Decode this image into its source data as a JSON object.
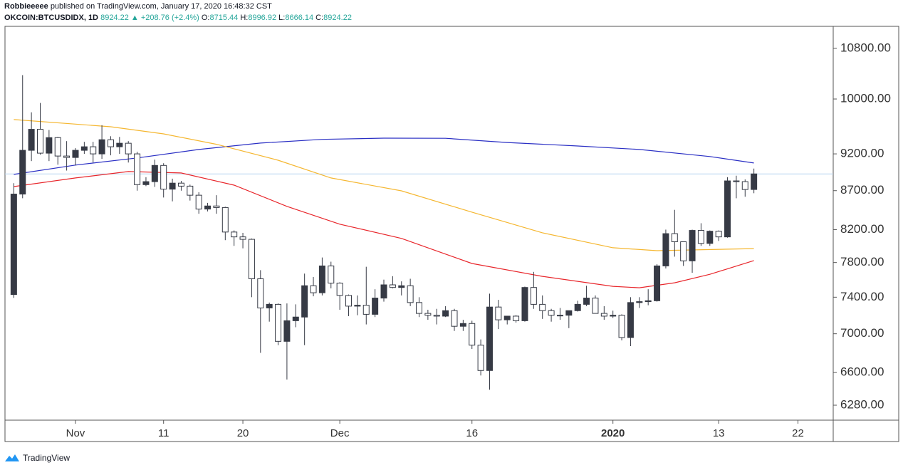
{
  "header": {
    "author": "Robbieeeee",
    "published": "published on TradingView.com, January 17, 2020 16:48:32 CST",
    "symbol": "OKCOIN:BTCUSDIDX, 1D",
    "change": "+208.76 (+2.4%)",
    "open_label": "O:",
    "high_label": "H:",
    "low_label": "L:",
    "close_label": "C:"
  },
  "footer": {
    "brand": "TradingView"
  },
  "chart_data": {
    "type": "candlestick",
    "log_scale": true,
    "up_color": "#363a45",
    "down_color": "#ffffff",
    "border_color": "#363a45",
    "last_price_line_color": "#b7d5f0",
    "candles": {
      "x": [
        "2019-10-25",
        "2019-10-26",
        "2019-10-27",
        "2019-10-28",
        "2019-10-29",
        "2019-10-30",
        "2019-10-31",
        "2019-11-01",
        "2019-11-02",
        "2019-11-03",
        "2019-11-04",
        "2019-11-05",
        "2019-11-06",
        "2019-11-07",
        "2019-11-08",
        "2019-11-09",
        "2019-11-10",
        "2019-11-11",
        "2019-11-12",
        "2019-11-13",
        "2019-11-14",
        "2019-11-15",
        "2019-11-16",
        "2019-11-17",
        "2019-11-18",
        "2019-11-19",
        "2019-11-20",
        "2019-11-21",
        "2019-11-22",
        "2019-11-23",
        "2019-11-24",
        "2019-11-25",
        "2019-11-26",
        "2019-11-27",
        "2019-11-28",
        "2019-11-29",
        "2019-11-30",
        "2019-12-01",
        "2019-12-02",
        "2019-12-03",
        "2019-12-04",
        "2019-12-05",
        "2019-12-06",
        "2019-12-07",
        "2019-12-08",
        "2019-12-09",
        "2019-12-10",
        "2019-12-11",
        "2019-12-12",
        "2019-12-13",
        "2019-12-14",
        "2019-12-15",
        "2019-12-16",
        "2019-12-17",
        "2019-12-18",
        "2019-12-19",
        "2019-12-20",
        "2019-12-21",
        "2019-12-22",
        "2019-12-23",
        "2019-12-24",
        "2019-12-25",
        "2019-12-26",
        "2019-12-27",
        "2019-12-28",
        "2019-12-29",
        "2019-12-30",
        "2019-12-31",
        "2020-01-01",
        "2020-01-02",
        "2020-01-03",
        "2020-01-04",
        "2020-01-05",
        "2020-01-06",
        "2020-01-07",
        "2020-01-08",
        "2020-01-09",
        "2020-01-10",
        "2020-01-11",
        "2020-01-12",
        "2020-01-13",
        "2020-01-14",
        "2020-01-15",
        "2020-01-16",
        "2020-01-17"
      ],
      "open": [
        7430,
        8655,
        9250,
        9550,
        9210,
        9430,
        9170,
        9150,
        9250,
        9300,
        9200,
        9400,
        9300,
        9350,
        9200,
        8780,
        8820,
        9040,
        8720,
        8800,
        8760,
        8640,
        8460,
        8500,
        8480,
        8170,
        8110,
        8080,
        7610,
        7280,
        7320,
        6920,
        7140,
        7180,
        7530,
        7450,
        7760,
        7560,
        7420,
        7300,
        7310,
        7210,
        7390,
        7540,
        7510,
        7530,
        7340,
        7220,
        7200,
        7190,
        7250,
        7080,
        7110,
        6880,
        6620,
        7290,
        7150,
        7190,
        7140,
        7510,
        7320,
        7250,
        7200,
        7200,
        7250,
        7320,
        7390,
        7220,
        7190,
        7200,
        6960,
        7340,
        7350,
        7360,
        7760,
        8150,
        8050,
        7820,
        8190,
        8030,
        8180,
        8110,
        8830,
        8820,
        8715.44
      ],
      "high": [
        8799,
        10370,
        9800,
        9940,
        9540,
        9440,
        9380,
        9280,
        9370,
        9370,
        9610,
        9450,
        9440,
        9380,
        9230,
        8880,
        9120,
        9070,
        8860,
        8830,
        8780,
        8680,
        8540,
        8640,
        8490,
        8190,
        8160,
        8090,
        7710,
        7340,
        7330,
        7330,
        7320,
        7670,
        7630,
        7860,
        7810,
        7570,
        7430,
        7420,
        7750,
        7490,
        7600,
        7640,
        7580,
        7610,
        7400,
        7260,
        7270,
        7300,
        7270,
        7150,
        7140,
        6940,
        7440,
        7370,
        7190,
        7200,
        7520,
        7690,
        7420,
        7270,
        7280,
        7250,
        7360,
        7530,
        7420,
        7300,
        7250,
        7210,
        7400,
        7400,
        7490,
        7780,
        8200,
        8450,
        8050,
        8200,
        8280,
        8190,
        8190,
        8880,
        8900,
        8850,
        8996.92
      ],
      "low": [
        7393,
        8600,
        9100,
        9190,
        9100,
        9050,
        8970,
        9040,
        9200,
        9080,
        9130,
        9180,
        9200,
        9080,
        8700,
        8760,
        8750,
        8610,
        8560,
        8700,
        8570,
        8400,
        8430,
        8400,
        8070,
        8000,
        7970,
        7400,
        6800,
        7130,
        6880,
        6530,
        7070,
        6880,
        7410,
        7420,
        7500,
        7260,
        7190,
        7200,
        7100,
        7180,
        7350,
        7500,
        7420,
        7300,
        7180,
        7150,
        7100,
        7180,
        7030,
        7030,
        6840,
        6570,
        6430,
        7050,
        7100,
        7120,
        7130,
        7270,
        7160,
        7130,
        7150,
        7060,
        7240,
        7300,
        7220,
        7150,
        7170,
        6930,
        6870,
        7280,
        7310,
        7350,
        7730,
        7870,
        7760,
        7680,
        8000,
        8000,
        8060,
        8100,
        8600,
        8620,
        8666.14
      ],
      "close": [
        8655,
        9250,
        9550,
        9210,
        9430,
        9170,
        9150,
        9250,
        9300,
        9200,
        9400,
        9300,
        9350,
        9200,
        8780,
        8820,
        9040,
        8720,
        8800,
        8760,
        8640,
        8460,
        8500,
        8480,
        8170,
        8110,
        8080,
        7610,
        7280,
        7320,
        6920,
        7140,
        7180,
        7530,
        7450,
        7760,
        7560,
        7420,
        7300,
        7310,
        7210,
        7390,
        7540,
        7510,
        7530,
        7340,
        7220,
        7200,
        7190,
        7250,
        7080,
        7110,
        6880,
        6620,
        7290,
        7150,
        7190,
        7140,
        7510,
        7320,
        7250,
        7200,
        7200,
        7250,
        7320,
        7390,
        7220,
        7190,
        7200,
        6960,
        7340,
        7350,
        7360,
        7760,
        8150,
        8050,
        7820,
        8190,
        8030,
        8180,
        8110,
        8830,
        8820,
        8715.44,
        8924.22
      ]
    },
    "moving_averages": [
      {
        "color": "#2a2fc4",
        "x": [
          "2019-10-25",
          "2019-11-01",
          "2019-11-08",
          "2019-11-15",
          "2019-11-22",
          "2019-11-29",
          "2019-12-06",
          "2019-12-13",
          "2019-12-20",
          "2019-12-28",
          "2020-01-04",
          "2020-01-12",
          "2020-01-17"
        ],
        "values": [
          8918,
          9045,
          9143,
          9262,
          9352,
          9405,
          9423,
          9420,
          9361,
          9311,
          9262,
          9163,
          9073
        ]
      },
      {
        "color": "#f5b731",
        "x": [
          "2019-10-25",
          "2019-11-05",
          "2019-11-11",
          "2019-11-17",
          "2019-11-24",
          "2019-11-30",
          "2019-12-08",
          "2019-12-16",
          "2019-12-24",
          "2020-01-01",
          "2020-01-06",
          "2020-01-17"
        ],
        "values": [
          9692,
          9587,
          9484,
          9335,
          9112,
          8870,
          8698,
          8421,
          8161,
          7977,
          7942,
          7967
        ]
      },
      {
        "color": "#e8262b",
        "x": [
          "2019-10-25",
          "2019-11-01",
          "2019-11-07",
          "2019-11-13",
          "2019-11-19",
          "2019-11-25",
          "2019-12-01",
          "2019-12-08",
          "2019-12-16",
          "2019-12-24",
          "2020-01-01",
          "2020-01-04",
          "2020-01-08",
          "2020-01-12",
          "2020-01-17"
        ],
        "values": [
          8754,
          8870,
          8956,
          8937,
          8773,
          8495,
          8268,
          8091,
          7789,
          7638,
          7523,
          7507,
          7564,
          7662,
          7823
        ]
      }
    ],
    "xlim": [
      "2019-10-24",
      "2020-01-26"
    ],
    "xticks": [
      {
        "value": "2019-11-01",
        "label": "Nov"
      },
      {
        "value": "2019-11-11",
        "label": "11"
      },
      {
        "value": "2019-11-20",
        "label": "20"
      },
      {
        "value": "2019-12-01",
        "label": "Dec"
      },
      {
        "value": "2019-12-16",
        "label": "16"
      },
      {
        "value": "2020-01-01",
        "label": "2020"
      },
      {
        "value": "2020-01-13",
        "label": "13"
      },
      {
        "value": "2020-01-22",
        "label": "22"
      }
    ],
    "ylim": [
      6139,
      11167
    ],
    "yticks": [
      {
        "value": 10800,
        "label": "10800.00"
      },
      {
        "value": 10000,
        "label": "10000.00"
      },
      {
        "value": 9200,
        "label": "9200.00"
      },
      {
        "value": 8700,
        "label": "8700.00"
      },
      {
        "value": 8200,
        "label": "8200.00"
      },
      {
        "value": 7800,
        "label": "7800.00"
      },
      {
        "value": 7400,
        "label": "7400.00"
      },
      {
        "value": 7000,
        "label": "7000.00"
      },
      {
        "value": 6600,
        "label": "6600.00"
      },
      {
        "value": 6280,
        "label": "6280.00"
      }
    ]
  }
}
